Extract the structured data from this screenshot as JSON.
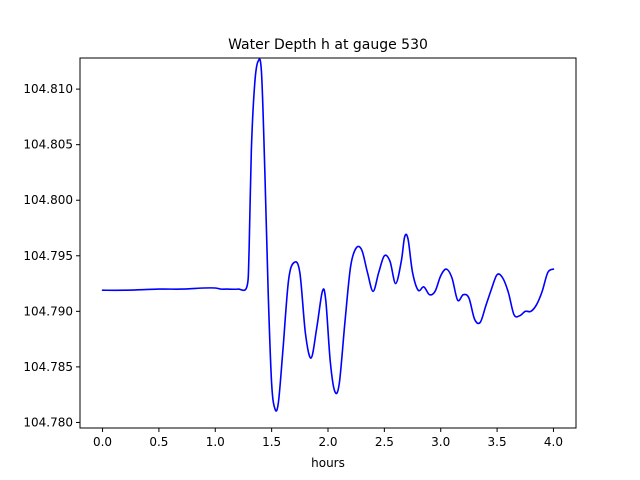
{
  "chart_data": {
    "type": "line",
    "title": "Water Depth h at gauge 530",
    "xlabel": "hours",
    "ylabel": "",
    "xlim": [
      -0.2,
      4.2
    ],
    "ylim": [
      104.7795,
      104.8128
    ],
    "grid": false,
    "xticks": [
      0.0,
      0.5,
      1.0,
      1.5,
      2.0,
      2.5,
      3.0,
      3.5,
      4.0
    ],
    "xtick_labels": [
      "0.0",
      "0.5",
      "1.0",
      "1.5",
      "2.0",
      "2.5",
      "3.0",
      "3.5",
      "4.0"
    ],
    "yticks": [
      104.78,
      104.785,
      104.79,
      104.795,
      104.8,
      104.805,
      104.81
    ],
    "ytick_labels": [
      "104.780",
      "104.785",
      "104.790",
      "104.795",
      "104.800",
      "104.805",
      "104.810"
    ],
    "series": [
      {
        "color": "#0000ff",
        "x": [
          0.0,
          0.2,
          0.5,
          0.7,
          0.9,
          1.0,
          1.05,
          1.1,
          1.2,
          1.28,
          1.3,
          1.32,
          1.35,
          1.38,
          1.41,
          1.44,
          1.47,
          1.5,
          1.53,
          1.56,
          1.6,
          1.65,
          1.7,
          1.75,
          1.8,
          1.85,
          1.9,
          1.95,
          1.98,
          2.02,
          2.06,
          2.1,
          2.15,
          2.2,
          2.25,
          2.3,
          2.35,
          2.4,
          2.45,
          2.5,
          2.55,
          2.6,
          2.65,
          2.68,
          2.71,
          2.75,
          2.8,
          2.85,
          2.9,
          2.95,
          3.0,
          3.05,
          3.1,
          3.15,
          3.2,
          3.25,
          3.3,
          3.35,
          3.4,
          3.45,
          3.5,
          3.55,
          3.6,
          3.65,
          3.7,
          3.75,
          3.8,
          3.85,
          3.9,
          3.95,
          4.0
        ],
        "y": [
          104.7919,
          104.7919,
          104.792,
          104.792,
          104.7921,
          104.7921,
          104.792,
          104.792,
          104.792,
          104.7922,
          104.7955,
          104.8045,
          104.8105,
          104.8125,
          104.8115,
          104.8025,
          104.7915,
          104.7835,
          104.7812,
          104.7818,
          104.7865,
          104.7928,
          104.7944,
          104.7935,
          104.788,
          104.7858,
          104.7885,
          104.7918,
          104.791,
          104.7855,
          104.7828,
          104.7835,
          104.789,
          104.794,
          104.7957,
          104.7955,
          104.7935,
          104.7918,
          104.7935,
          104.795,
          104.7945,
          104.7925,
          104.7945,
          104.7967,
          104.7965,
          104.7935,
          104.7919,
          104.7922,
          104.7915,
          104.7918,
          104.7932,
          104.7938,
          104.793,
          104.791,
          104.7915,
          104.7912,
          104.7893,
          104.789,
          104.7905,
          104.792,
          104.7933,
          104.793,
          104.7917,
          104.7897,
          104.7896,
          104.79,
          104.79,
          104.7906,
          104.7918,
          104.7935,
          104.7938
        ]
      }
    ]
  }
}
